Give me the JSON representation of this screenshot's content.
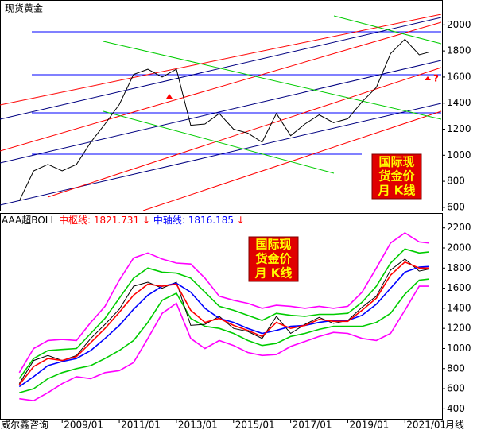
{
  "header": {
    "title": "现货黄金"
  },
  "indicator": {
    "name": "AAA超BOLL",
    "label1": "中枢线:",
    "value1": 1821.731,
    "arrow1": "↓",
    "label2": "中轴线:",
    "value2": 1816.185,
    "arrow2": "↓"
  },
  "box1": {
    "lines": [
      "国际现",
      "货金价",
      "月  K线"
    ]
  },
  "box2": {
    "lines": [
      "国际现",
      "货金价",
      "月  K线"
    ]
  },
  "question": "?",
  "footer": {
    "source": "威尔鑫咨询",
    "period": "月线"
  },
  "chart_data": [
    {
      "type": "line",
      "xlim": [
        2006.85,
        2022.3
      ],
      "ylim": [
        575,
        2185
      ],
      "yticks": [
        600,
        800,
        1000,
        1200,
        1400,
        1600,
        1800,
        2000
      ],
      "x": [
        2007.5,
        2008,
        2008.5,
        2009,
        2009.5,
        2010,
        2010.5,
        2011,
        2011.5,
        2012,
        2012.5,
        2013,
        2013.5,
        2014,
        2014.5,
        2015,
        2015.5,
        2016,
        2016.5,
        2017,
        2017.5,
        2018,
        2018.5,
        2019,
        2019.5,
        2020,
        2020.5,
        2021,
        2021.5,
        2021.83
      ],
      "series": [
        {
          "color": "#000000",
          "values": [
            650,
            880,
            930,
            880,
            930,
            1100,
            1240,
            1390,
            1620,
            1660,
            1600,
            1660,
            1230,
            1240,
            1320,
            1200,
            1170,
            1100,
            1320,
            1150,
            1240,
            1310,
            1250,
            1280,
            1410,
            1520,
            1780,
            1890,
            1770,
            1790
          ]
        }
      ]
    },
    {
      "type": "line",
      "xlim": [
        2006.85,
        2022.3
      ],
      "ylim": [
        300,
        2340
      ],
      "yticks": [
        400,
        600,
        800,
        1000,
        1200,
        1400,
        1600,
        1800,
        2000,
        2200
      ],
      "xticks": [
        {
          "value": 2009,
          "label": "2009/01"
        },
        {
          "value": 2011,
          "label": "2011/01"
        },
        {
          "value": 2013,
          "label": "2013/01"
        },
        {
          "value": 2015,
          "label": "2015/01"
        },
        {
          "value": 2017,
          "label": "2017/01"
        },
        {
          "value": 2019,
          "label": "2019/01"
        },
        {
          "value": 2021,
          "label": "2021/01"
        }
      ],
      "x": [
        2007.5,
        2008,
        2008.5,
        2009,
        2009.5,
        2010,
        2010.5,
        2011,
        2011.5,
        2012,
        2012.5,
        2013,
        2013.5,
        2014,
        2014.5,
        2015,
        2015.5,
        2016,
        2016.5,
        2017,
        2017.5,
        2018,
        2018.5,
        2019,
        2019.5,
        2020,
        2020.5,
        2021,
        2021.5,
        2021.83
      ],
      "series": [
        {
          "color": "#ff00ff",
          "values": [
            760,
            1000,
            1080,
            1090,
            1080,
            1260,
            1420,
            1680,
            1900,
            1950,
            1890,
            1850,
            1840,
            1700,
            1520,
            1480,
            1450,
            1400,
            1430,
            1420,
            1400,
            1420,
            1400,
            1420,
            1560,
            1800,
            2050,
            2150,
            2060,
            2050
          ]
        },
        {
          "color": "#ff00ff",
          "values": [
            500,
            480,
            560,
            650,
            720,
            700,
            760,
            780,
            860,
            1100,
            1350,
            1450,
            1100,
            1000,
            1080,
            1030,
            960,
            930,
            940,
            1020,
            1070,
            1120,
            1160,
            1150,
            1100,
            1080,
            1150,
            1380,
            1620,
            1620
          ]
        },
        {
          "color": "#00cc00",
          "values": [
            700,
            900,
            980,
            990,
            1000,
            1150,
            1300,
            1500,
            1700,
            1800,
            1760,
            1750,
            1700,
            1560,
            1420,
            1380,
            1330,
            1280,
            1350,
            1330,
            1320,
            1340,
            1340,
            1350,
            1460,
            1620,
            1850,
            1990,
            1950,
            1960
          ]
        },
        {
          "color": "#00cc00",
          "values": [
            560,
            600,
            700,
            760,
            800,
            830,
            900,
            980,
            1080,
            1260,
            1480,
            1550,
            1300,
            1220,
            1200,
            1150,
            1080,
            1030,
            1050,
            1120,
            1150,
            1190,
            1220,
            1220,
            1220,
            1260,
            1350,
            1540,
            1680,
            1690
          ]
        },
        {
          "color": "#000000",
          "values": [
            650,
            880,
            930,
            880,
            930,
            1100,
            1240,
            1390,
            1620,
            1660,
            1600,
            1660,
            1230,
            1240,
            1320,
            1200,
            1170,
            1100,
            1320,
            1150,
            1240,
            1310,
            1250,
            1280,
            1410,
            1520,
            1780,
            1890,
            1770,
            1790
          ]
        },
        {
          "color": "#0000ff",
          "values": [
            620,
            720,
            830,
            870,
            900,
            980,
            1100,
            1230,
            1390,
            1530,
            1620,
            1650,
            1560,
            1400,
            1300,
            1260,
            1200,
            1150,
            1180,
            1220,
            1230,
            1260,
            1280,
            1280,
            1330,
            1440,
            1600,
            1760,
            1810,
            1816
          ]
        },
        {
          "color": "#ff0000",
          "values": [
            640,
            820,
            900,
            880,
            920,
            1060,
            1200,
            1360,
            1530,
            1640,
            1620,
            1640,
            1380,
            1260,
            1300,
            1230,
            1180,
            1120,
            1260,
            1200,
            1230,
            1290,
            1270,
            1270,
            1380,
            1500,
            1730,
            1860,
            1800,
            1800
          ]
        }
      ]
    }
  ]
}
